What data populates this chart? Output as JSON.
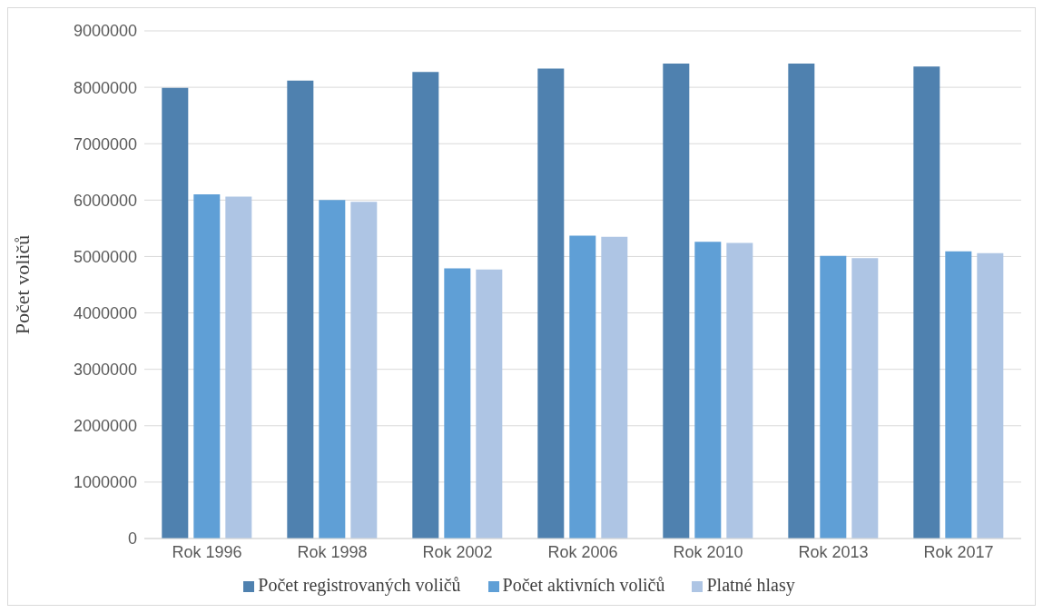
{
  "chart_data": {
    "type": "bar",
    "ylabel": "Počet voličů",
    "categories": [
      "Rok 1996",
      "Rok 1998",
      "Rok 2002",
      "Rok 2006",
      "Rok 2010",
      "Rok 2013",
      "Rok 2017"
    ],
    "series": [
      {
        "name": "Počet registrovaných voličů",
        "color": "#4f81af",
        "values": [
          7990000,
          8120000,
          8270000,
          8330000,
          8420000,
          8420000,
          8370000
        ]
      },
      {
        "name": "Počet aktivních voličů",
        "color": "#5f9fd6",
        "values": [
          6100000,
          6000000,
          4790000,
          5370000,
          5260000,
          5010000,
          5090000
        ]
      },
      {
        "name": "Platné hlasy",
        "color": "#aec5e4",
        "values": [
          6060000,
          5970000,
          4770000,
          5350000,
          5240000,
          4970000,
          5060000
        ]
      }
    ],
    "ylim": [
      0,
      9000000
    ],
    "yticks": [
      0,
      1000000,
      2000000,
      3000000,
      4000000,
      5000000,
      6000000,
      7000000,
      8000000,
      9000000
    ],
    "grid": "y",
    "legend": "bottom"
  }
}
